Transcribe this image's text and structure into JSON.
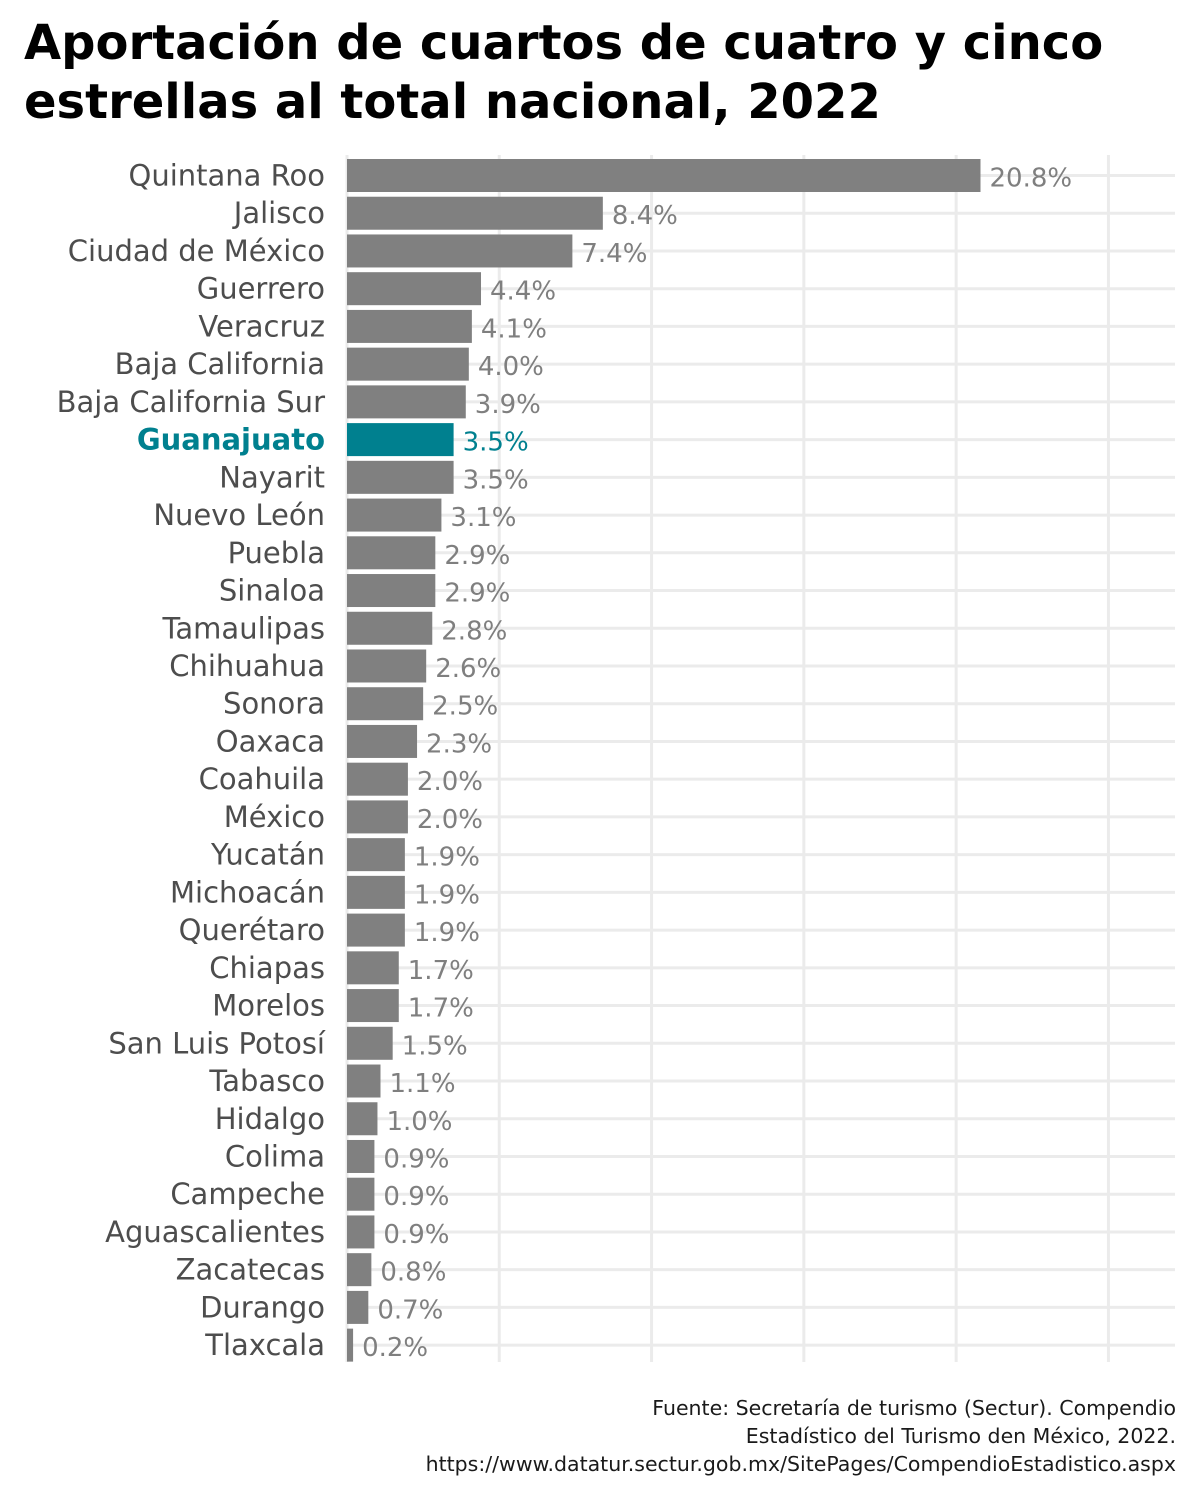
{
  "chart_data": {
    "type": "bar",
    "orientation": "horizontal",
    "title": "Aportación de cuartos de cuatro y cinco estrellas al total nacional, 2022",
    "title_lines": [
      "Aportación de cuartos de cuatro y cinco",
      "estrellas al total nacional, 2022"
    ],
    "xlabel": "",
    "ylabel": "",
    "xlim": [
      0,
      27
    ],
    "grid": true,
    "highlight": "Guanajuato",
    "colors": {
      "bar": "#808080",
      "highlight": "#00808f",
      "label": "#7f7f7f",
      "category": "#4d4d4d",
      "grid": "#ebebeb"
    },
    "categories": [
      "Quintana Roo",
      "Jalisco",
      "Ciudad de México",
      "Guerrero",
      "Veracruz",
      "Baja California",
      "Baja California Sur",
      "Guanajuato",
      "Nayarit",
      "Nuevo León",
      "Puebla",
      "Sinaloa",
      "Tamaulipas",
      "Chihuahua",
      "Sonora",
      "Oaxaca",
      "Coahuila",
      "México",
      "Yucatán",
      "Michoacán",
      "Querétaro",
      "Chiapas",
      "Morelos",
      "San Luis Potosí",
      "Tabasco",
      "Hidalgo",
      "Colima",
      "Campeche",
      "Aguascalientes",
      "Zacatecas",
      "Durango",
      "Tlaxcala"
    ],
    "values": [
      20.8,
      8.4,
      7.4,
      4.4,
      4.1,
      4.0,
      3.9,
      3.5,
      3.5,
      3.1,
      2.9,
      2.9,
      2.8,
      2.6,
      2.5,
      2.3,
      2.0,
      2.0,
      1.9,
      1.9,
      1.9,
      1.7,
      1.7,
      1.5,
      1.1,
      1.0,
      0.9,
      0.9,
      0.9,
      0.8,
      0.7,
      0.2
    ],
    "labels": [
      "20.8%",
      "8.4%",
      "7.4%",
      "4.4%",
      "4.1%",
      "4.0%",
      "3.9%",
      "3.5%",
      "3.5%",
      "3.1%",
      "2.9%",
      "2.9%",
      "2.8%",
      "2.6%",
      "2.5%",
      "2.3%",
      "2.0%",
      "2.0%",
      "1.9%",
      "1.9%",
      "1.9%",
      "1.7%",
      "1.7%",
      "1.5%",
      "1.1%",
      "1.0%",
      "0.9%",
      "0.9%",
      "0.9%",
      "0.8%",
      "0.7%",
      "0.2%"
    ]
  },
  "source": {
    "lines": [
      "Fuente: Secretaría de turismo (Sectur). Compendio",
      "Estadístico del Turismo den México, 2022.",
      "https://www.datatur.sectur.gob.mx/SitePages/CompendioEstadistico.aspx"
    ]
  }
}
